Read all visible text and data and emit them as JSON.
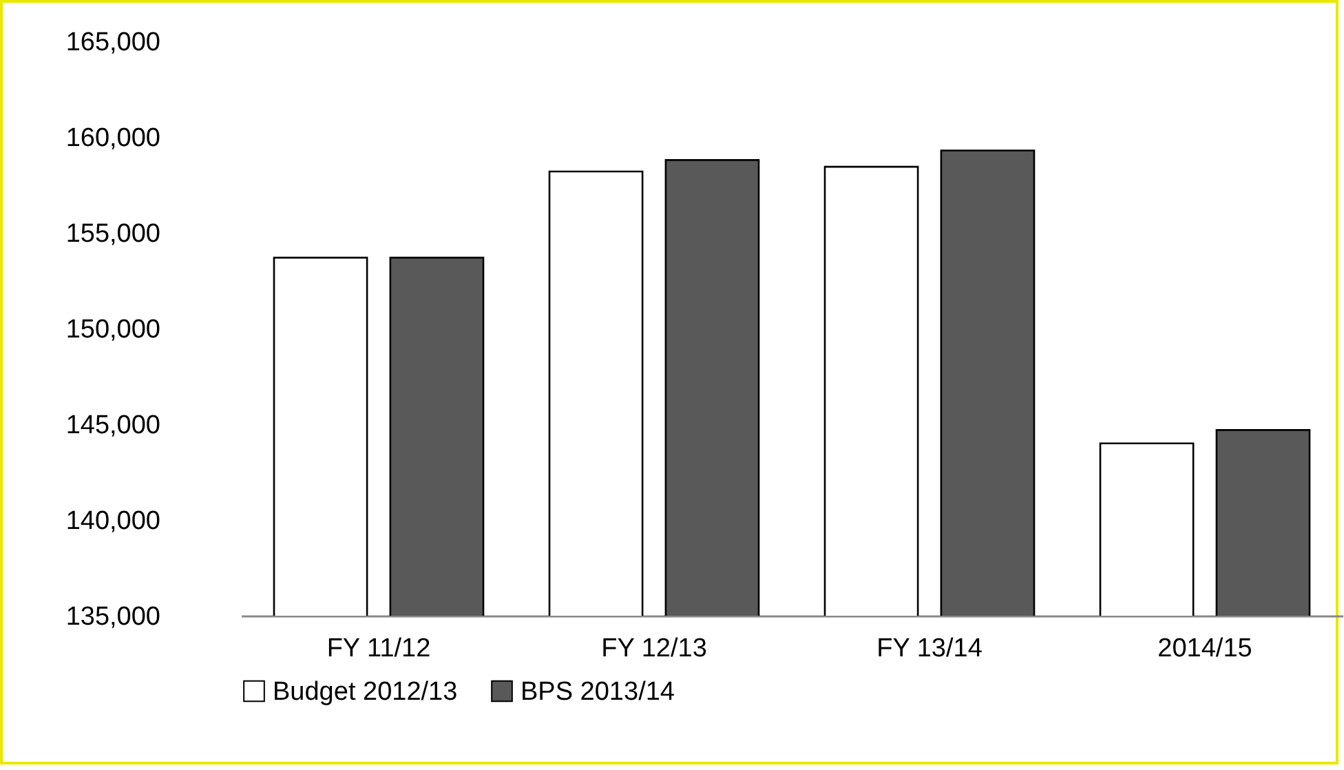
{
  "chart_data": {
    "type": "bar",
    "categories": [
      "FY 11/12",
      "FY 12/13",
      "FY 13/14",
      "2014/15"
    ],
    "series": [
      {
        "name": "Budget 2012/13",
        "color": "#ffffff",
        "values": [
          153700,
          158200,
          158450,
          144000
        ]
      },
      {
        "name": "BPS 2013/14",
        "color": "#595959",
        "values": [
          153700,
          158800,
          159300,
          144700
        ]
      }
    ],
    "ylim": [
      135000,
      165000
    ],
    "yticks": [
      {
        "value": 135000,
        "label": "135,000"
      },
      {
        "value": 140000,
        "label": "140,000"
      },
      {
        "value": 145000,
        "label": "145,000"
      },
      {
        "value": 150000,
        "label": "150,000"
      },
      {
        "value": 155000,
        "label": "155,000"
      },
      {
        "value": 160000,
        "label": "160,000"
      },
      {
        "value": 165000,
        "label": "165,000"
      }
    ],
    "grid": false,
    "legend": "bottom"
  }
}
